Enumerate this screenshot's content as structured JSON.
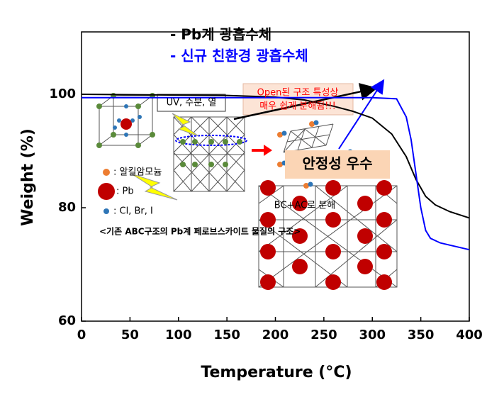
{
  "chart_data": {
    "type": "line",
    "x_label": "Temperature (°C)",
    "y_label": "Weight (%)",
    "xlim": [
      0,
      400
    ],
    "xticks": [
      0,
      50,
      100,
      150,
      200,
      250,
      300,
      350,
      400
    ],
    "ylim": [
      60,
      111
    ],
    "yticks": [
      60,
      80,
      100
    ],
    "series": [
      {
        "name": "- Pb계 광흡수체",
        "color": "#000000",
        "x": [
          0,
          150,
          200,
          230,
          260,
          280,
          300,
          320,
          335,
          345,
          355,
          365,
          380,
          400
        ],
        "values": [
          100,
          99.8,
          99.5,
          99,
          97.9,
          97,
          95.8,
          93,
          89,
          85,
          82,
          80.5,
          79.3,
          78.2
        ]
      },
      {
        "name": "- 신규 친환경 광흡수체",
        "color": "#0000ff",
        "x": [
          0,
          100,
          200,
          300,
          325,
          335,
          340,
          345,
          350,
          355,
          360,
          370,
          380,
          400
        ],
        "values": [
          99.4,
          99.4,
          99.4,
          99.4,
          99.2,
          96,
          92,
          86,
          80,
          76,
          74.6,
          73.8,
          73.4,
          72.6
        ]
      }
    ],
    "annotations": [
      "UV, 수분, 열",
      "Open된 구조 특성상",
      "매우 쉽게 분해됨!!!",
      "안정성 우수",
      ": 알킬암모늄",
      ": Pb",
      ": Cl, Br, I",
      "<기존 ABC구조의 Pb계 페로브스카이트 물질의 구조>",
      "BC+AC로 분해"
    ]
  }
}
